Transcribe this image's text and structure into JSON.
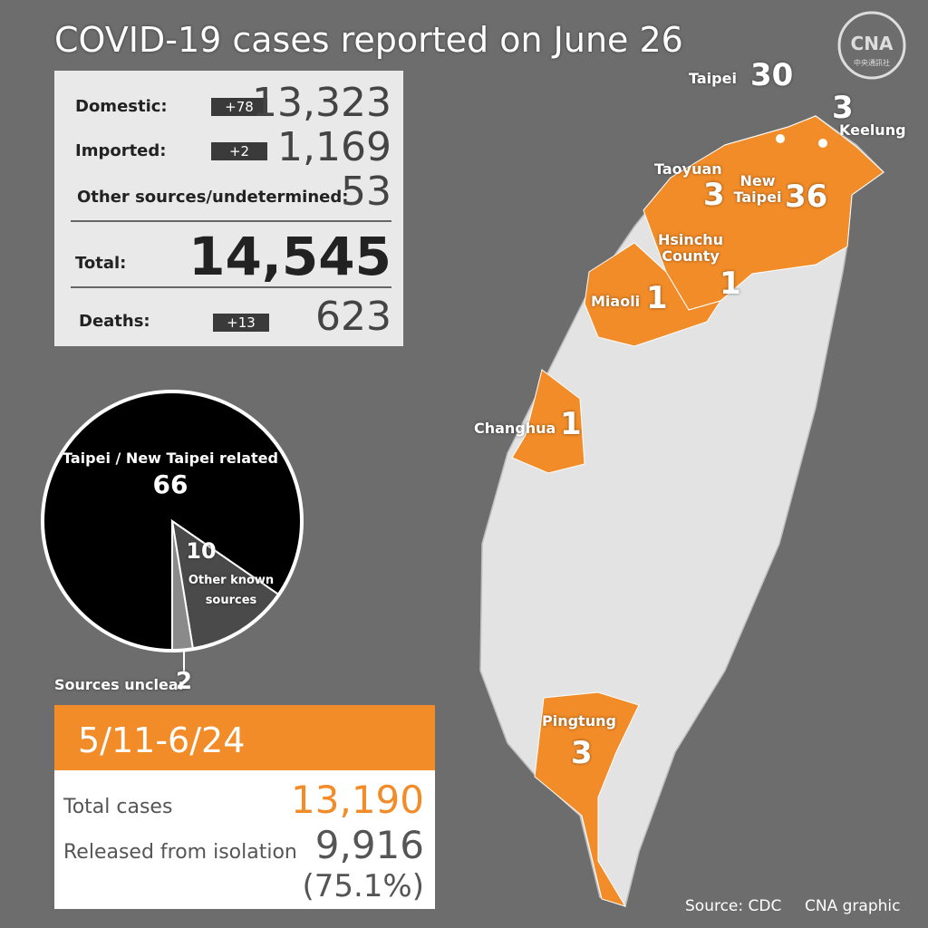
{
  "title": "COVID-19 cases reported on June 26",
  "logo": {
    "text": "CNA",
    "subtext": "中央通訊社"
  },
  "stats": {
    "rows": [
      {
        "label": "Domestic:",
        "change": "+78",
        "value": "13,323"
      },
      {
        "label": "Imported:",
        "change": "+2",
        "value": "1,169"
      },
      {
        "label": "Other sources/undetermined:",
        "value": "53"
      }
    ],
    "total": {
      "label": "Total:",
      "value": "14,545"
    },
    "deaths": {
      "label": "Deaths:",
      "change": "+13",
      "value": "623"
    }
  },
  "chart_data": {
    "type": "pie",
    "categories": [
      "Taipei / New Taipei related",
      "Other known sources",
      "Sources unclear"
    ],
    "values": [
      66,
      10,
      2
    ],
    "colors": [
      "#000000",
      "#4a4a4a",
      "#8a8a8a"
    ]
  },
  "period": {
    "label": "5/11-6/24",
    "rows": [
      {
        "label": "Total cases",
        "value": "13,190"
      },
      {
        "label": "Released from isolation",
        "value": "9,916",
        "note": "(75.1%)"
      }
    ]
  },
  "map": {
    "regions": [
      {
        "name": "Taipei",
        "value": 30
      },
      {
        "name": "Keelung",
        "value": 3
      },
      {
        "name": "Taoyuan",
        "value": 3
      },
      {
        "name": "New Taipei",
        "value": 36
      },
      {
        "name": "Hsinchu County",
        "value": 1
      },
      {
        "name": "Miaoli",
        "value": 1
      },
      {
        "name": "Changhua",
        "value": 1
      },
      {
        "name": "Pingtung",
        "value": 3
      }
    ]
  },
  "source": "Source: CDC",
  "credit": "CNA graphic"
}
